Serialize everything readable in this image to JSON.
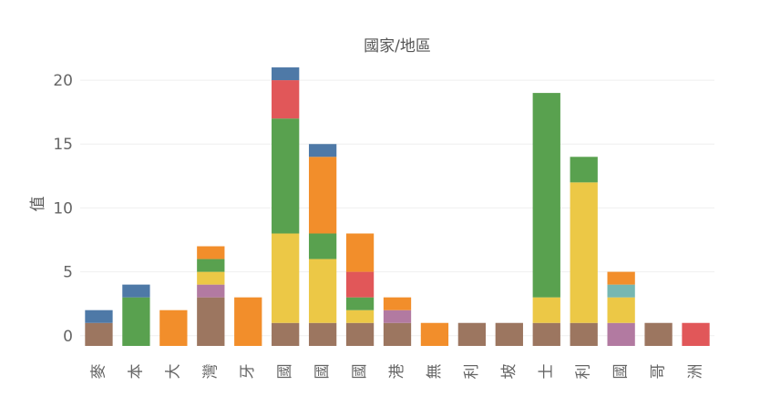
{
  "chart_data": {
    "type": "bar",
    "stacked": true,
    "title": "國家/地區",
    "xlabel": "",
    "ylabel": "值",
    "ylim": [
      -0.8,
      22
    ],
    "yticks": [
      0,
      5,
      10,
      15,
      20
    ],
    "grid": true,
    "legend": "none",
    "categories": [
      "麥",
      "本",
      "大",
      "灣",
      "牙",
      "國",
      "國",
      "國",
      "港",
      "無",
      "利",
      "坡",
      "士",
      "利",
      "國",
      "哥",
      "洲"
    ],
    "series": [
      {
        "color": "#9c7660",
        "values": [
          1,
          0,
          0,
          3,
          0,
          1,
          1,
          1,
          1,
          0,
          1,
          1,
          1,
          1,
          0,
          1,
          0
        ]
      },
      {
        "color": "#b27aa1",
        "values": [
          0,
          0,
          0,
          1,
          0,
          0,
          0,
          0,
          1,
          0,
          0,
          0,
          0,
          0,
          1,
          0,
          0
        ]
      },
      {
        "color": "#ecc846",
        "values": [
          0,
          0,
          0,
          1,
          0,
          7,
          5,
          1,
          0,
          0,
          0,
          0,
          2,
          11,
          2,
          0,
          0
        ]
      },
      {
        "color": "#76b7b2",
        "values": [
          0,
          0,
          0,
          0,
          0,
          0,
          0,
          0,
          0,
          0,
          0,
          0,
          0,
          0,
          1,
          0,
          0
        ]
      },
      {
        "color": "#59a14f",
        "values": [
          0,
          3,
          0,
          1,
          0,
          9,
          2,
          1,
          0,
          0,
          0,
          0,
          16,
          2,
          0,
          0,
          0
        ]
      },
      {
        "color": "#e15759",
        "values": [
          0,
          0,
          0,
          0,
          0,
          3,
          0,
          2,
          0,
          0,
          0,
          0,
          0,
          0,
          0,
          0,
          1
        ]
      },
      {
        "color": "#f28e2b",
        "values": [
          0,
          0,
          2,
          1,
          3,
          0,
          6,
          3,
          1,
          1,
          0,
          0,
          0,
          0,
          1,
          0,
          0
        ]
      },
      {
        "color": "#4e79a7",
        "values": [
          1,
          1,
          0,
          0,
          0,
          1,
          1,
          0,
          0,
          0,
          0,
          0,
          0,
          0,
          0,
          0,
          0
        ]
      }
    ]
  }
}
